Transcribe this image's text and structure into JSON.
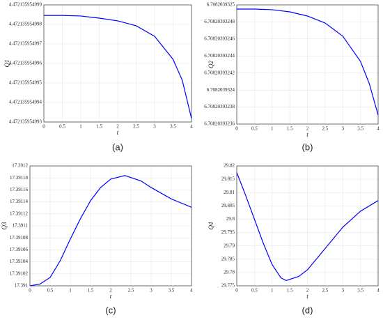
{
  "chart_data": [
    {
      "type": "line",
      "caption": "(a)",
      "x_label": "t",
      "y_label": "Q1",
      "x": [
        0,
        0.5,
        1,
        1.5,
        2,
        2.5,
        3,
        3.5,
        3.75,
        4
      ],
      "series": [
        {
          "color": "#0000ff",
          "values": [
            4.47213595499846,
            4.47213595499846,
            4.47213595499843,
            4.47213595499832,
            4.47213595499818,
            4.47213595499793,
            4.47213595499739,
            4.47213595499621,
            4.47213595499514,
            4.47213595499318
          ]
        }
      ],
      "xlim": [
        0,
        4
      ],
      "xticks": [
        0,
        0.5,
        1,
        1.5,
        2,
        2.5,
        3,
        3.5,
        4
      ],
      "ylim": [
        4.472135954993,
        4.472135954999
      ],
      "yticks": [
        4.472135954993,
        4.472135954994,
        4.472135954995,
        4.472135954996,
        4.472135954997,
        4.472135954998,
        4.472135954999
      ],
      "grid": true
    },
    {
      "type": "line",
      "caption": "(b)",
      "x_label": "t",
      "y_label": "Q2",
      "x": [
        0,
        0.5,
        1,
        1.5,
        2,
        2.5,
        3,
        3.5,
        3.75,
        4
      ],
      "series": [
        {
          "color": "#0000ff",
          "values": [
            6.7082039324951,
            6.7082039324951,
            6.7082039324943,
            6.7082039324918,
            6.7082039324869,
            6.7082039324787,
            6.7082039324632,
            6.7082039324337,
            6.7082039324075,
            6.7082039323706
          ]
        }
      ],
      "xlim": [
        0,
        4
      ],
      "xticks": [
        0,
        0.5,
        1,
        1.5,
        2,
        2.5,
        3,
        3.5,
        4
      ],
      "ylim": [
        6.70820393236,
        6.7082039325
      ],
      "yticks": [
        6.70820393236,
        6.70820393238,
        6.7082039324,
        6.70820393242,
        6.70820393244,
        6.70820393246,
        6.70820393248,
        6.7082039325
      ],
      "grid": true
    },
    {
      "type": "line",
      "caption": "(c)",
      "x_label": "t",
      "y_label": "Q3",
      "x": [
        0,
        0.25,
        0.5,
        0.75,
        1,
        1.25,
        1.5,
        1.75,
        2,
        2.35,
        2.75,
        3,
        3.5,
        4
      ],
      "series": [
        {
          "color": "#0000ff",
          "values": [
            17.391,
            17.391003,
            17.391014,
            17.391042,
            17.391078,
            17.391112,
            17.391142,
            17.391164,
            17.391178,
            17.391184,
            17.391175,
            17.391164,
            17.391145,
            17.391131
          ]
        }
      ],
      "xlim": [
        0,
        4
      ],
      "xticks": [
        0,
        0.5,
        1,
        1.5,
        2,
        2.5,
        3,
        3.5,
        4
      ],
      "ylim": [
        17.391,
        17.3912
      ],
      "yticks": [
        17.391,
        17.39102,
        17.39104,
        17.39106,
        17.39108,
        17.3911,
        17.39112,
        17.39114,
        17.39116,
        17.39118,
        17.3912
      ],
      "grid": true
    },
    {
      "type": "line",
      "caption": "(d)",
      "x_label": "t",
      "y_label": "Q4",
      "x": [
        0,
        0.25,
        0.5,
        0.75,
        1,
        1.25,
        1.4,
        1.75,
        2,
        2.5,
        3,
        3.5,
        4
      ],
      "series": [
        {
          "color": "#0000ff",
          "values": [
            29.8175,
            29.809,
            29.8,
            29.791,
            29.783,
            29.778,
            29.777,
            29.7785,
            29.781,
            29.789,
            29.797,
            29.803,
            29.807
          ]
        }
      ],
      "xlim": [
        0,
        4
      ],
      "xticks": [
        0,
        0.5,
        1,
        1.5,
        2,
        2.5,
        3,
        3.5,
        4
      ],
      "ylim": [
        29.775,
        29.82
      ],
      "yticks": [
        29.775,
        29.78,
        29.785,
        29.79,
        29.795,
        29.8,
        29.805,
        29.81,
        29.815,
        29.82
      ],
      "grid": true
    }
  ]
}
